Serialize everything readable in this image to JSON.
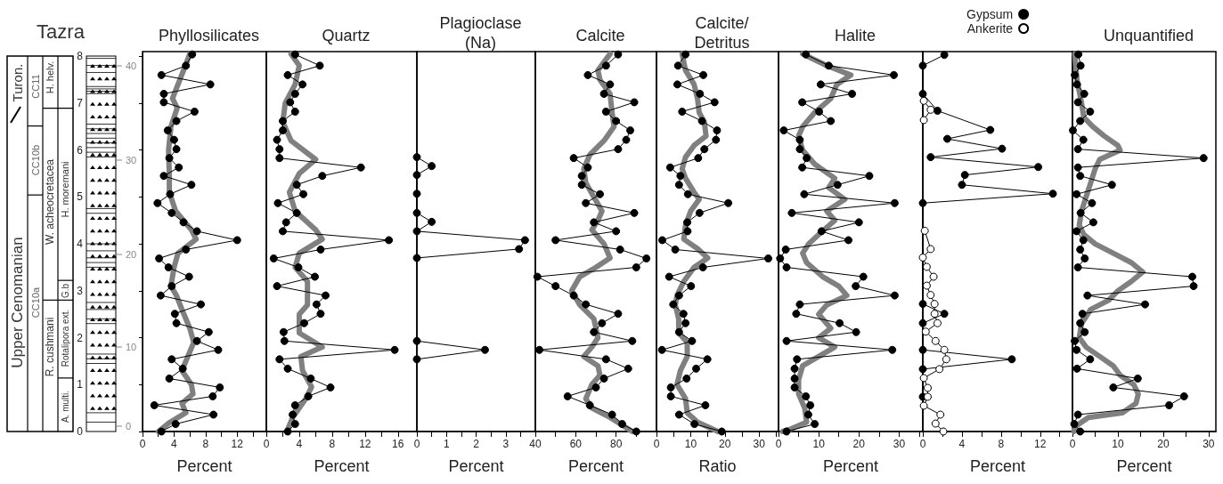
{
  "chart_data": [
    {
      "type": "line",
      "title": "Phyllosilicates",
      "xlabel": "Percent",
      "marker": "circle",
      "xlim": [
        0,
        15.7
      ],
      "xticks": [
        0,
        {
          "value": 2,
          "label": null
        },
        4,
        {
          "value": 6,
          "label": null
        },
        8,
        {
          "value": 10,
          "label": null
        },
        12,
        {
          "value": 14,
          "label": null
        }
      ],
      "ylim": [
        0,
        8.1
      ],
      "yticks": [
        0,
        1,
        2,
        3,
        4,
        5,
        6,
        7,
        8
      ],
      "annotations": [
        "Tazra",
        "Upper Cenomanian",
        "Turon.",
        "CC10a",
        "CC10b",
        "CC11",
        "R. cushmani",
        "W. acheocretacea",
        "H. helv.",
        "A. multi.",
        "Rotalipora ext.",
        "G.b",
        "H. moremani",
        "0",
        "10",
        "20",
        "30",
        "40"
      ],
      "series": [
        {
          "color": "#808080",
          "marker": "none",
          "x": [
            6.0,
            5.2,
            4.5,
            3.8,
            4.4,
            3.6,
            3.3,
            3.4,
            3.4,
            4.2,
            6.2,
            6.8,
            4.5,
            4.0,
            3.6,
            4.3,
            5.0,
            6.0,
            6.5,
            5.5,
            5.0,
            6.2,
            6.4,
            5.0,
            5.5,
            3.5,
            2.0
          ],
          "values": [
            8.05,
            7.7,
            7.4,
            7.1,
            6.9,
            6.5,
            6.0,
            5.5,
            5.1,
            4.7,
            4.3,
            4.1,
            3.8,
            3.5,
            3.1,
            2.9,
            2.6,
            2.2,
            1.9,
            1.5,
            1.3,
            1.0,
            0.8,
            0.6,
            0.4,
            0.2,
            0
          ]
        },
        {
          "color": "#000000",
          "x": [
            6.3,
            5.5,
            2.4,
            8.6,
            2.7,
            2.7,
            6.6,
            4.3,
            3.2,
            4.0,
            4.3,
            3.4,
            4.6,
            2.7,
            6.2,
            3.5,
            1.9,
            3.7,
            5.2,
            6.9,
            12.0,
            5.5,
            2.1,
            3.3,
            5.9,
            3.7,
            2.3,
            7.4,
            4.1,
            4.3,
            8.4,
            6.9,
            9.6,
            3.7,
            5.1,
            3.4,
            9.8,
            8.9,
            1.5,
            9.0,
            4.2,
            2.4
          ],
          "values": [
            8.04,
            7.8,
            7.6,
            7.4,
            7.2,
            7.02,
            6.82,
            6.62,
            6.42,
            6.22,
            6.02,
            5.83,
            5.63,
            5.45,
            5.26,
            5.06,
            4.87,
            4.66,
            4.46,
            4.27,
            4.08,
            3.88,
            3.69,
            3.5,
            3.3,
            3.1,
            2.9,
            2.71,
            2.51,
            2.31,
            2.12,
            1.93,
            1.74,
            1.54,
            1.34,
            1.13,
            0.94,
            0.75,
            0.56,
            0.36,
            0.16,
            0
          ]
        }
      ]
    },
    {
      "type": "line",
      "title": "Quartz",
      "xlabel": "Percent",
      "marker": "circle",
      "tick_labels": "x",
      "xlim": [
        0,
        18.3
      ],
      "xticks": [
        0,
        {
          "value": 2,
          "label": null
        },
        4,
        {
          "value": 6,
          "label": null
        },
        8,
        {
          "value": 10,
          "label": null
        },
        12,
        {
          "value": 14,
          "label": null
        },
        16
      ],
      "ylim": [
        0,
        8.1
      ],
      "yticks": [
        0,
        1,
        2,
        3,
        4,
        5,
        6,
        7,
        8
      ],
      "series": [
        {
          "color": "#808080",
          "marker": "none",
          "x": [
            2.5,
            3.2,
            4.8,
            5.5,
            4.4,
            4.2,
            6.8,
            4.0,
            4.0,
            5.0,
            5.0,
            3.5,
            4.0,
            6.8,
            6.0,
            3.5,
            2.8,
            4.0,
            6.0,
            3.0,
            2.0,
            2.3,
            3.5,
            4.0,
            3.0
          ],
          "values": [
            0,
            0.3,
            0.7,
            0.95,
            1.3,
            1.6,
            1.8,
            2.1,
            2.5,
            2.7,
            3.2,
            3.5,
            3.8,
            4.1,
            4.3,
            4.7,
            5.1,
            5.5,
            5.8,
            6.2,
            6.6,
            7.0,
            7.4,
            7.8,
            8.05
          ]
        },
        {
          "color": "#000000",
          "x": [
            3.5,
            6.5,
            2.6,
            4.4,
            3.5,
            2.9,
            3.5,
            2.0,
            2.0,
            1.3,
            1.6,
            1.6,
            11.5,
            6.8,
            3.7,
            4.5,
            1.4,
            3.7,
            2.4,
            2.0,
            14.9,
            6.6,
            0.9,
            3.9,
            5.9,
            1.3,
            7.2,
            6.1,
            6.6,
            4.6,
            2.1,
            2.2,
            15.6,
            1.6,
            2.6,
            5.4,
            7.8,
            5.1,
            3.5,
            3.2,
            3.5,
            2.6
          ],
          "values": [
            8.04,
            7.8,
            7.6,
            7.4,
            7.2,
            7.02,
            6.82,
            6.62,
            6.42,
            6.22,
            6.02,
            5.83,
            5.63,
            5.45,
            5.26,
            5.06,
            4.87,
            4.66,
            4.46,
            4.27,
            4.08,
            3.88,
            3.69,
            3.5,
            3.3,
            3.1,
            2.9,
            2.71,
            2.51,
            2.31,
            2.12,
            1.93,
            1.74,
            1.54,
            1.34,
            1.13,
            0.94,
            0.75,
            0.56,
            0.36,
            0.16,
            0
          ]
        }
      ]
    },
    {
      "type": "line",
      "title": "Plagioclase\n(Na)",
      "xlabel": "Percent",
      "marker": "circle",
      "tick_labels": "x",
      "xlim": [
        0,
        4
      ],
      "xticks": [
        0,
        {
          "value": 0.5,
          "label": null
        },
        1,
        {
          "value": 1.5,
          "label": null
        },
        2,
        {
          "value": 2.5,
          "label": null
        },
        3,
        {
          "value": 3.5,
          "label": null
        }
      ],
      "ylim": [
        0,
        8.1
      ],
      "yticks": [
        0,
        1,
        2,
        3,
        4,
        5,
        6,
        7,
        8
      ],
      "series": [
        {
          "color": "#000000",
          "x": [
            0,
            0.5,
            0,
            0,
            0,
            0.5,
            0,
            3.65,
            3.45,
            0,
            null,
            0,
            2.3,
            0
          ],
          "values": [
            5.85,
            5.66,
            5.47,
            5.07,
            4.66,
            4.47,
            4.27,
            4.08,
            3.89,
            3.7,
            null,
            1.93,
            1.74,
            1.54
          ]
        }
      ]
    },
    {
      "type": "line",
      "title": "Calcite",
      "xlabel": "Percent",
      "marker": "circle",
      "tick_labels": "x",
      "xlim": [
        40,
        100
      ],
      "xticks": [
        40,
        {
          "value": 50,
          "label": null
        },
        60,
        {
          "value": 70,
          "label": null
        },
        80,
        {
          "value": 90,
          "label": null
        }
      ],
      "ylim": [
        0,
        8.1
      ],
      "yticks": [
        0,
        1,
        2,
        3,
        4,
        5,
        6,
        7,
        8
      ],
      "series": [
        {
          "color": "#808080",
          "marker": "none",
          "x": [
            77,
            71,
            72,
            77,
            78,
            79,
            74,
            67,
            64,
            65,
            69,
            73,
            71,
            68,
            74,
            77,
            70,
            62,
            58,
            62,
            69,
            71,
            68,
            64,
            71,
            72,
            68,
            65,
            68,
            77,
            88
          ],
          "values": [
            8.05,
            7.7,
            7.5,
            7.2,
            6.8,
            6.5,
            6.2,
            5.9,
            5.6,
            5.3,
            5.0,
            4.7,
            4.5,
            4.3,
            4.0,
            3.7,
            3.5,
            3.3,
            3.0,
            2.7,
            2.4,
            2.0,
            1.8,
            1.6,
            1.4,
            1.2,
            1.0,
            0.7,
            0.5,
            0.3,
            0
          ]
        },
        {
          "color": "#000000",
          "x": [
            81,
            75,
            66,
            77,
            74,
            89,
            75,
            80,
            87,
            85,
            81,
            59,
            66,
            63,
            63,
            72,
            65,
            89,
            69,
            80,
            50,
            82,
            95,
            90,
            41,
            50,
            59,
            65,
            81,
            73,
            69,
            88,
            42,
            75,
            86,
            74,
            70,
            56,
            67,
            78,
            83,
            90
          ],
          "values": [
            8.04,
            7.8,
            7.6,
            7.4,
            7.2,
            7.02,
            6.82,
            6.62,
            6.42,
            6.22,
            6.02,
            5.83,
            5.63,
            5.45,
            5.26,
            5.06,
            4.87,
            4.66,
            4.46,
            4.27,
            4.08,
            3.88,
            3.69,
            3.5,
            3.3,
            3.1,
            2.9,
            2.71,
            2.51,
            2.31,
            2.12,
            1.93,
            1.74,
            1.54,
            1.34,
            1.13,
            0.94,
            0.75,
            0.56,
            0.36,
            0.16,
            0
          ]
        }
      ]
    },
    {
      "type": "line",
      "title": "Calcite/\nDetritus",
      "xlabel": "Ratio",
      "marker": "circle",
      "tick_labels": "x",
      "xlim": [
        0,
        35.7
      ],
      "xticks": [
        0,
        {
          "value": 5,
          "label": null
        },
        10,
        {
          "value": 15,
          "label": null
        },
        20,
        {
          "value": 25,
          "label": null
        },
        30,
        {
          "value": 35,
          "label": null
        }
      ],
      "ylim": [
        0,
        8.1
      ],
      "yticks": [
        0,
        1,
        2,
        3,
        4,
        5,
        6,
        7,
        8
      ],
      "series": [
        {
          "color": "#808080",
          "marker": "none",
          "x": [
            7.5,
            8.5,
            11,
            12,
            12.5,
            14,
            14.5,
            11,
            8.5,
            7.5,
            8.5,
            11,
            12.5,
            10,
            8.5,
            8,
            12,
            15,
            11,
            8,
            6,
            5.5,
            6.5,
            6.5,
            9,
            9,
            7,
            6,
            8.5,
            9,
            12,
            18
          ],
          "values": [
            8.05,
            7.7,
            7.4,
            7.1,
            6.8,
            6.6,
            6.3,
            6.1,
            5.85,
            5.6,
            5.4,
            5.1,
            4.95,
            4.7,
            4.4,
            4.1,
            3.9,
            3.7,
            3.5,
            3.2,
            2.9,
            2.7,
            2.4,
            2.1,
            1.9,
            1.6,
            1.3,
            1.0,
            0.7,
            0.4,
            0.2,
            0
          ]
        },
        {
          "color": "#000000",
          "x": [
            8.5,
            6.3,
            13.7,
            6.1,
            12.7,
            17.0,
            7.5,
            13.3,
            17.7,
            17.4,
            14.0,
            12.2,
            4.0,
            7.0,
            6.6,
            9.2,
            21.0,
            12.6,
            9.0,
            9.1,
            1.7,
            5.5,
            32.7,
            13.6,
            3.7,
            10.1,
            6.6,
            4.9,
            7.9,
            8.5,
            6.6,
            10.4,
            1.6,
            14.9,
            11.6,
            8.8,
            4.2,
            4.2,
            14.3,
            6.6,
            11.1,
            19.1
          ],
          "values": [
            8.04,
            7.8,
            7.6,
            7.4,
            7.2,
            7.02,
            6.82,
            6.62,
            6.42,
            6.22,
            6.02,
            5.83,
            5.63,
            5.45,
            5.26,
            5.06,
            4.87,
            4.66,
            4.46,
            4.27,
            4.08,
            3.88,
            3.69,
            3.5,
            3.3,
            3.1,
            2.9,
            2.71,
            2.51,
            2.31,
            2.12,
            1.93,
            1.74,
            1.54,
            1.34,
            1.13,
            0.94,
            0.75,
            0.56,
            0.36,
            0.16,
            0
          ]
        }
      ]
    },
    {
      "type": "line",
      "title": "Halite",
      "xlabel": "Percent",
      "marker": "circle",
      "tick_labels": "x",
      "xlim": [
        0,
        35.9
      ],
      "xticks": [
        0,
        {
          "value": 5,
          "label": null
        },
        10,
        {
          "value": 15,
          "label": null
        },
        20,
        {
          "value": 25,
          "label": null
        },
        30,
        {
          "value": 35,
          "label": null
        }
      ],
      "ylim": [
        0,
        8.1
      ],
      "yticks": [
        0,
        1,
        2,
        3,
        4,
        5,
        6,
        7,
        8
      ],
      "series": [
        {
          "color": "#808080",
          "marker": "none",
          "x": [
            6,
            12,
            18,
            14.5,
            13,
            9,
            6,
            5,
            6,
            9,
            14,
            12.5,
            16.5,
            12,
            14,
            10,
            7.5,
            6,
            7,
            11,
            15,
            17,
            12,
            10,
            13,
            10,
            14,
            10,
            6,
            5,
            5,
            6.5,
            7,
            3,
            1
          ],
          "values": [
            8.05,
            7.8,
            7.6,
            7.4,
            7.1,
            6.8,
            6.5,
            6.3,
            6.0,
            5.7,
            5.4,
            5.2,
            4.95,
            4.7,
            4.5,
            4.2,
            4.0,
            3.8,
            3.6,
            3.3,
            3.1,
            2.9,
            2.7,
            2.5,
            2.2,
            2.0,
            1.8,
            1.6,
            1.4,
            1.1,
            0.8,
            0.5,
            0.2,
            0.05,
            0
          ]
        },
        {
          "color": "#000000",
          "x": [
            6.8,
            12.5,
            28.7,
            10.5,
            18.3,
            5.9,
            10.1,
            13.0,
            1.3,
            5.3,
            5.3,
            7.0,
            5.9,
            22.6,
            14.7,
            6.4,
            28.9,
            3.3,
            20.0,
            10.7,
            17.4,
            1.8,
            0.4,
            2.0,
            21.1,
            19.2,
            28.9,
            5.3,
            4.4,
            15.2,
            19.3,
            2.0,
            28.3,
            4.6,
            4.0,
            4.0,
            4.0,
            6.8,
            7.9,
            7.4,
            9.0,
            2.0
          ],
          "values": [
            8.04,
            7.8,
            7.6,
            7.4,
            7.2,
            7.02,
            6.82,
            6.62,
            6.42,
            6.22,
            6.02,
            5.83,
            5.63,
            5.45,
            5.26,
            5.06,
            4.87,
            4.66,
            4.46,
            4.27,
            4.08,
            3.88,
            3.69,
            3.5,
            3.3,
            3.1,
            2.9,
            2.71,
            2.51,
            2.31,
            2.12,
            1.93,
            1.74,
            1.54,
            1.34,
            1.13,
            0.94,
            0.75,
            0.56,
            0.36,
            0.16,
            0
          ]
        }
      ]
    },
    {
      "type": "line",
      "xlabel": "Percent",
      "marker": "circle",
      "tick_labels": "x",
      "legend": "top",
      "xlim": [
        0,
        15.3
      ],
      "xticks": [
        0,
        {
          "value": 2,
          "label": null
        },
        4,
        {
          "value": 6,
          "label": null
        },
        8,
        {
          "value": 10,
          "label": null
        },
        12,
        {
          "value": 14,
          "label": null
        }
      ],
      "ylim": [
        0,
        8.1
      ],
      "yticks": [
        0,
        1,
        2,
        3,
        4,
        5,
        6,
        7,
        8
      ],
      "series": [
        {
          "name": "Gypsum",
          "color": "#000000",
          "x": [
            2.2,
            0,
            0,
            1.5,
            6.9,
            2.5,
            8.1,
            0.8,
            11.8,
            4.3,
            4.0,
            13.3,
            0,
            0,
            2.2,
            0,
            0,
            9.1,
            0,
            0
          ],
          "values": [
            8.03,
            7.8,
            7.2,
            6.84,
            6.43,
            6.24,
            6.03,
            5.85,
            5.64,
            5.47,
            5.26,
            5.07,
            4.87,
            2.72,
            2.51,
            2.31,
            1.74,
            1.54,
            1.33,
            0.74
          ]
        },
        {
          "name": "Ankerite",
          "color": "#ffffff",
          "x": [
            0.1,
            0.8,
            0.1,
            null,
            0.2,
            0.8,
            0,
            0.4,
            1.1,
            0.4,
            0.8,
            1.2,
            1.2,
            1.5,
            0.3,
            1.3,
            2.2,
            2.4,
            1.7,
            0.1,
            0.5,
            0.5,
            0.1,
            1.8,
            1.3,
            2.1
          ],
          "values": [
            7.05,
            6.86,
            6.64,
            null,
            4.28,
            3.89,
            3.71,
            3.51,
            3.3,
            3.11,
            2.91,
            2.72,
            2.51,
            2.31,
            2.13,
            1.93,
            1.74,
            1.54,
            1.33,
            1.14,
            0.93,
            0.74,
            0.55,
            0.36,
            0.17,
            0
          ]
        }
      ]
    },
    {
      "type": "line",
      "title": "Unquantified",
      "xlabel": "Percent",
      "marker": "circle",
      "tick_labels": "x",
      "xlim": [
        0,
        31.6
      ],
      "xticks": [
        0,
        {
          "value": 5,
          "label": null
        },
        10,
        {
          "value": 15,
          "label": null
        },
        20,
        {
          "value": 25,
          "label": null
        },
        30
      ],
      "ylim": [
        0,
        8.1
      ],
      "yticks": [
        0,
        1,
        2,
        3,
        4,
        5,
        6,
        7,
        8
      ],
      "series": [
        {
          "color": "#808080",
          "marker": "none",
          "x": [
            0.5,
            1,
            2,
            2.5,
            4.5,
            7,
            10,
            10.5,
            6,
            5,
            4,
            3,
            2,
            1.5,
            2.5,
            5,
            9,
            13,
            15.5,
            13,
            10,
            8,
            4,
            2,
            1.5,
            3,
            6,
            9,
            10.5,
            13.5,
            14.5,
            14,
            11,
            3.5,
            0.5,
            0.3
          ],
          "values": [
            8.05,
            7.5,
            7.0,
            6.7,
            6.5,
            6.3,
            6.1,
            6.0,
            5.8,
            5.6,
            5.3,
            5.0,
            4.7,
            4.4,
            4.2,
            4.0,
            3.8,
            3.6,
            3.4,
            3.2,
            3.0,
            2.8,
            2.6,
            2.3,
            2.0,
            1.8,
            1.6,
            1.4,
            1.2,
            1.0,
            0.8,
            0.6,
            0.4,
            0.3,
            0.1,
            0
          ]
        },
        {
          "color": "#000000",
          "x": [
            1.3,
            1.8,
            0.5,
            1.0,
            2.6,
            1.2,
            3.9,
            1.7,
            0.1,
            2.4,
            1.2,
            28.9,
            1.2,
            1.7,
            8.7,
            0.9,
            4.3,
            1.8,
            4.6,
            0.9,
            2.4,
            1.7,
            2.7,
            1.2,
            26.4,
            26.7,
            3.3,
            16.0,
            2.2,
            1.7,
            2.7,
            0.5,
            0.9,
            3.9,
            1.0,
            14.4,
            9.0,
            24.6,
            21.3,
            1.2,
            0.4,
            1.7
          ],
          "values": [
            8.04,
            7.8,
            7.6,
            7.4,
            7.2,
            7.02,
            6.82,
            6.62,
            6.42,
            6.22,
            6.02,
            5.83,
            5.63,
            5.45,
            5.26,
            5.06,
            4.87,
            4.66,
            4.46,
            4.27,
            4.08,
            3.88,
            3.69,
            3.5,
            3.3,
            3.1,
            2.9,
            2.71,
            2.51,
            2.31,
            2.12,
            1.93,
            1.74,
            1.54,
            1.34,
            1.13,
            0.94,
            0.75,
            0.56,
            0.36,
            0.16,
            0
          ]
        }
      ]
    }
  ]
}
